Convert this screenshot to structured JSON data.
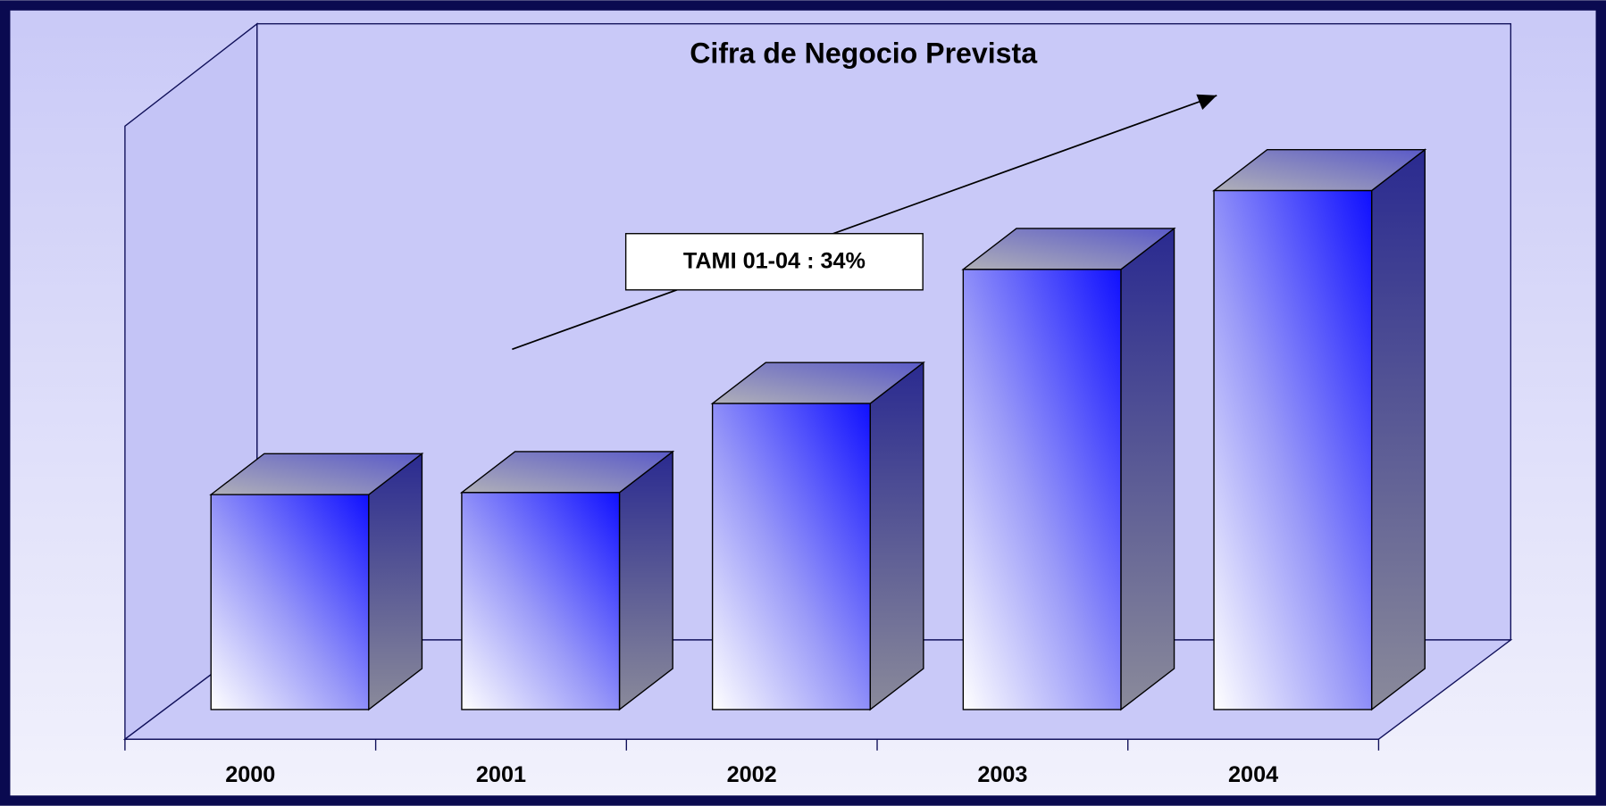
{
  "chart_data": {
    "type": "bar3d",
    "title": "Cifra de Negocio Prevista",
    "categories": [
      "2000",
      "2001",
      "2002",
      "2003",
      "2004"
    ],
    "values": [
      210,
      212,
      299,
      430,
      507
    ],
    "color": "#1a1aff",
    "ylim": [
      0,
      600
    ],
    "annotation": "TAMI 01-04 : 34%"
  }
}
